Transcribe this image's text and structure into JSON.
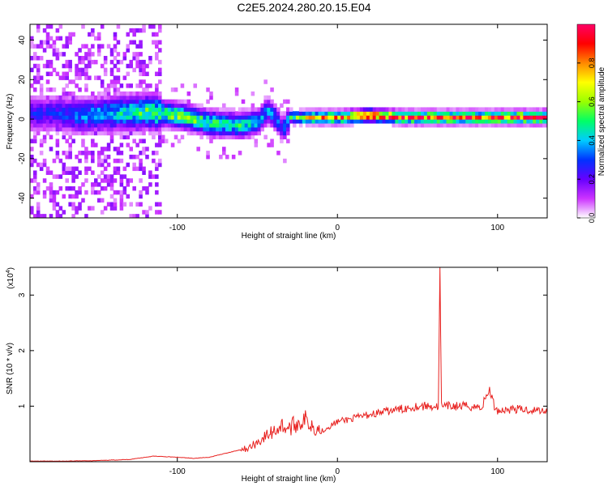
{
  "page_title": "C2E5.2024.280.20.15.E04",
  "chart_data": [
    {
      "type": "heatmap",
      "xlabel": "Height of straight line (km)",
      "ylabel": "Frequency (Hz)",
      "xlim": [
        -192,
        131
      ],
      "ylim": [
        -50,
        48
      ],
      "x_ticks": [
        -100,
        0,
        100
      ],
      "y_ticks": [
        -40,
        -20,
        0,
        20,
        40
      ],
      "colorbar": {
        "label": "Normalized spectral amplitude",
        "range": [
          0,
          1
        ],
        "ticks": [
          0.0,
          0.2,
          0.4,
          0.6,
          0.8
        ],
        "tick_labels": [
          "0.0",
          "0.2",
          "0.4",
          "0.6",
          "0.8"
        ],
        "colormap": [
          "#ffffff",
          "#cc33ff",
          "#6600ff",
          "#0033ff",
          "#00ccff",
          "#00ff66",
          "#99ff00",
          "#ffff00",
          "#ff8800",
          "#ff0000",
          "#ff0066"
        ]
      },
      "ridge": {
        "x": [
          -180,
          -160,
          -140,
          -120,
          -100,
          -80,
          -60,
          -50,
          -45,
          -40,
          -35,
          -30,
          -20,
          0,
          20,
          40,
          60,
          80,
          95,
          100,
          120,
          130
        ],
        "y": [
          2,
          1,
          2,
          3,
          1,
          -3,
          -4,
          -2,
          4,
          0,
          -6,
          0,
          0,
          0,
          1,
          0,
          0,
          0,
          0,
          0,
          0,
          0
        ],
        "peak_amplitude": [
          0.25,
          0.35,
          0.4,
          0.5,
          0.55,
          0.5,
          0.45,
          0.4,
          0.35,
          0.35,
          0.3,
          0.45,
          0.7,
          0.8,
          0.85,
          0.85,
          0.85,
          0.85,
          0.8,
          0.9,
          0.95,
          0.95
        ]
      }
    },
    {
      "type": "line",
      "xlabel": "Height of straight line (km)",
      "ylabel": "SNR (10 * v/v)",
      "y_scale_label": "(x10",
      "y_scale_exponent": "4",
      "xlim": [
        -192,
        131
      ],
      "ylim": [
        0,
        3.5
      ],
      "x_ticks": [
        -100,
        0,
        100
      ],
      "y_ticks": [
        1,
        2,
        3
      ],
      "color": "#e8201e",
      "series": [
        {
          "x": [
            -192,
            -170,
            -150,
            -130,
            -115,
            -100,
            -90,
            -80,
            -70,
            -60,
            -55,
            -50,
            -45,
            -40,
            -35,
            -30,
            -25,
            -20,
            -15,
            -10,
            0,
            10,
            20,
            30,
            40,
            50,
            60,
            63,
            64,
            65,
            66,
            70,
            80,
            90,
            95,
            96,
            98,
            100,
            110,
            120,
            131
          ],
          "y": [
            0.01,
            0.01,
            0.02,
            0.04,
            0.1,
            0.08,
            0.06,
            0.08,
            0.15,
            0.22,
            0.25,
            0.35,
            0.45,
            0.55,
            0.65,
            0.6,
            0.7,
            0.75,
            0.65,
            0.55,
            0.72,
            0.78,
            0.85,
            0.9,
            0.95,
            1.0,
            1.0,
            0.98,
            3.5,
            1.0,
            0.98,
            1.0,
            1.0,
            0.98,
            1.3,
            1.2,
            1.0,
            0.92,
            0.95,
            0.93,
            0.92
          ]
        }
      ]
    }
  ]
}
